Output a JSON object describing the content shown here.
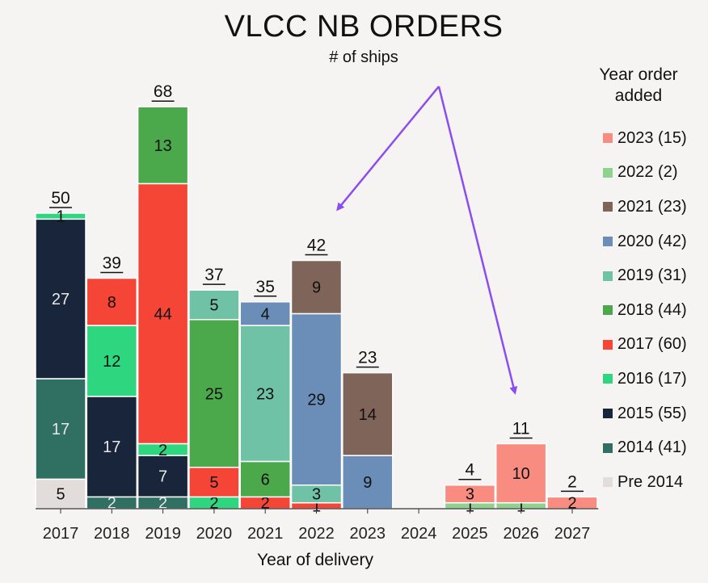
{
  "chart_data": {
    "type": "bar",
    "stacked": true,
    "title": "VLCC NB ORDERS",
    "subtitle": "# of ships",
    "xlabel": "Year of delivery",
    "ylabel": "",
    "legend_title": "Year order added",
    "legend_position": "right",
    "grid": false,
    "categories": [
      "2017",
      "2018",
      "2019",
      "2020",
      "2021",
      "2022",
      "2023",
      "2024",
      "2025",
      "2026",
      "2027"
    ],
    "totals": [
      50,
      39,
      68,
      37,
      35,
      42,
      23,
      null,
      4,
      11,
      2
    ],
    "series": [
      {
        "name": "Pre 2014",
        "label": "Pre 2014",
        "color": "#e2dcda",
        "text_color": "#111111",
        "values": [
          5,
          0,
          0,
          0,
          0,
          0,
          0,
          0,
          0,
          0,
          0
        ]
      },
      {
        "name": "2014",
        "label": "2014 (41)",
        "color": "#2f7062",
        "text_color": "#e8e8e8",
        "values": [
          17,
          2,
          2,
          0,
          0,
          0,
          0,
          0,
          0,
          0,
          0
        ]
      },
      {
        "name": "2015",
        "label": "2015 (55)",
        "color": "#18253a",
        "text_color": "#e8e8e8",
        "values": [
          27,
          17,
          7,
          0,
          0,
          0,
          0,
          0,
          0,
          0,
          0
        ]
      },
      {
        "name": "2016",
        "label": "2016 (17)",
        "color": "#2ed67f",
        "text_color": "#111111",
        "values": [
          1,
          12,
          2,
          2,
          0,
          0,
          0,
          0,
          0,
          0,
          0
        ]
      },
      {
        "name": "2017",
        "label": "2017 (60)",
        "color": "#f44537",
        "text_color": "#111111",
        "values": [
          0,
          8,
          44,
          5,
          2,
          1,
          0,
          0,
          0,
          0,
          0
        ]
      },
      {
        "name": "2018",
        "label": "2018 (44)",
        "color": "#4ca94b",
        "text_color": "#111111",
        "values": [
          0,
          0,
          13,
          25,
          6,
          0,
          0,
          0,
          0,
          0,
          0
        ]
      },
      {
        "name": "2019",
        "label": "2019 (31)",
        "color": "#70c2a6",
        "text_color": "#111111",
        "values": [
          0,
          0,
          0,
          5,
          23,
          3,
          0,
          0,
          0,
          0,
          0
        ]
      },
      {
        "name": "2020",
        "label": "2020 (42)",
        "color": "#6a8eb8",
        "text_color": "#111111",
        "values": [
          0,
          0,
          0,
          0,
          4,
          29,
          9,
          0,
          0,
          0,
          0
        ]
      },
      {
        "name": "2021",
        "label": "2021 (23)",
        "color": "#7f6559",
        "text_color": "#111111",
        "values": [
          0,
          0,
          0,
          0,
          0,
          9,
          14,
          0,
          0,
          0,
          0
        ]
      },
      {
        "name": "2022",
        "label": "2022 (2)",
        "color": "#8fd18f",
        "text_color": "#111111",
        "values": [
          0,
          0,
          0,
          0,
          0,
          0,
          0,
          0,
          1,
          1,
          0
        ]
      },
      {
        "name": "2023",
        "label": "2023 (15)",
        "color": "#f88c80",
        "text_color": "#111111",
        "values": [
          0,
          0,
          0,
          0,
          0,
          0,
          0,
          0,
          3,
          10,
          2
        ]
      }
    ],
    "ylim": [
      0,
      68
    ],
    "annotations": [
      {
        "type": "arrow",
        "color": "#8b4cf0",
        "description": "arrows pointing to 2022 and 2026 bars"
      }
    ]
  }
}
